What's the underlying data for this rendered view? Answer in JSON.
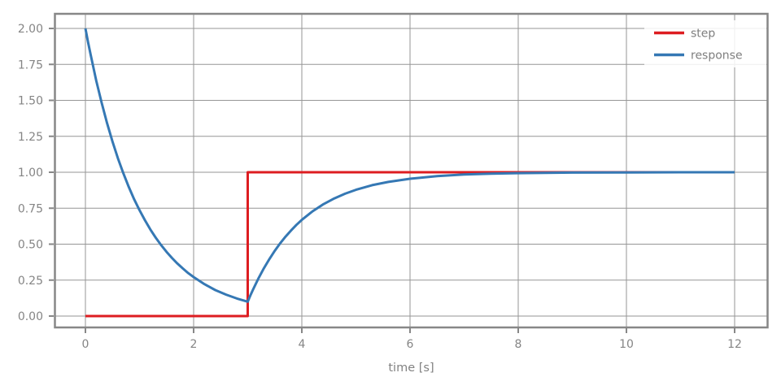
{
  "figure": {
    "background": "#ffffff"
  },
  "colors": {
    "step_line": "#dd1d21",
    "response_line": "#3578b4",
    "spine": "#878787",
    "grid": "#969696",
    "tick": "#878787",
    "text": "#858585",
    "legend_background": "#ffffff"
  },
  "legend": {
    "position": "upper right",
    "entries": [
      {
        "label": "step",
        "color": "#dd1d21"
      },
      {
        "label": "response",
        "color": "#3578b4"
      }
    ]
  },
  "chart_data": {
    "type": "line",
    "title": "",
    "xlabel": "time [s]",
    "ylabel": "",
    "grid": true,
    "legend_position": "upper right",
    "xlim": [
      -0.56,
      12.6
    ],
    "ylim": [
      -0.08,
      2.1
    ],
    "x_ticks": [
      0,
      2,
      4,
      6,
      8,
      10,
      12
    ],
    "x_tick_labels": [
      "0",
      "2",
      "4",
      "6",
      "8",
      "10",
      "12"
    ],
    "y_ticks": [
      0,
      0.25,
      0.5,
      0.75,
      1.0,
      1.25,
      1.5,
      1.75,
      2.0
    ],
    "y_tick_labels": [
      "0.00",
      "0.25",
      "0.50",
      "0.75",
      "1.00",
      "1.25",
      "1.50",
      "1.75",
      "2.00"
    ],
    "series": [
      {
        "name": "step",
        "color": "#dd1d21",
        "line_width": 3,
        "points": [
          [
            0,
            0
          ],
          [
            3,
            0
          ],
          [
            3,
            1
          ],
          [
            12,
            1
          ]
        ]
      },
      {
        "name": "response",
        "color": "#3578b4",
        "line_width": 3,
        "points": [
          [
            0,
            2.0
          ],
          [
            0.05,
            1.902
          ],
          [
            0.1,
            1.81
          ],
          [
            0.2,
            1.637
          ],
          [
            0.3,
            1.482
          ],
          [
            0.4,
            1.341
          ],
          [
            0.5,
            1.213
          ],
          [
            0.6,
            1.098
          ],
          [
            0.7,
            0.993
          ],
          [
            0.8,
            0.899
          ],
          [
            0.9,
            0.813
          ],
          [
            1.0,
            0.736
          ],
          [
            1.1,
            0.666
          ],
          [
            1.2,
            0.602
          ],
          [
            1.3,
            0.545
          ],
          [
            1.4,
            0.493
          ],
          [
            1.5,
            0.446
          ],
          [
            1.6,
            0.404
          ],
          [
            1.7,
            0.365
          ],
          [
            1.8,
            0.331
          ],
          [
            1.9,
            0.299
          ],
          [
            2.0,
            0.271
          ],
          [
            2.2,
            0.222
          ],
          [
            2.4,
            0.181
          ],
          [
            2.6,
            0.149
          ],
          [
            2.8,
            0.122
          ],
          [
            3.0,
            0.1
          ],
          [
            3.05,
            0.144
          ],
          [
            3.1,
            0.185
          ],
          [
            3.2,
            0.263
          ],
          [
            3.3,
            0.333
          ],
          [
            3.4,
            0.396
          ],
          [
            3.5,
            0.454
          ],
          [
            3.6,
            0.506
          ],
          [
            3.7,
            0.553
          ],
          [
            3.8,
            0.595
          ],
          [
            3.9,
            0.634
          ],
          [
            4.0,
            0.669
          ],
          [
            4.2,
            0.729
          ],
          [
            4.4,
            0.778
          ],
          [
            4.6,
            0.818
          ],
          [
            4.8,
            0.851
          ],
          [
            5.0,
            0.878
          ],
          [
            5.3,
            0.91
          ],
          [
            5.6,
            0.933
          ],
          [
            6.0,
            0.955
          ],
          [
            6.5,
            0.973
          ],
          [
            7.0,
            0.984
          ],
          [
            7.5,
            0.99
          ],
          [
            8.0,
            0.994
          ],
          [
            9.0,
            0.998
          ],
          [
            10.0,
            0.999
          ],
          [
            11.0,
            1.0
          ],
          [
            12.0,
            1.0
          ]
        ]
      }
    ]
  }
}
